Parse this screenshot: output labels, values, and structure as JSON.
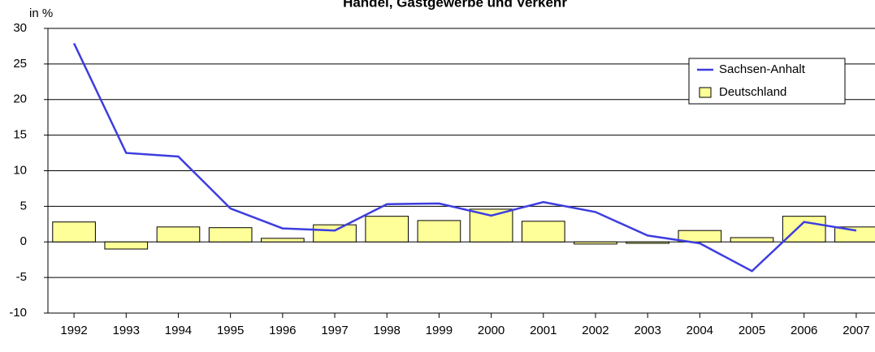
{
  "chart_data": {
    "type": "bar_line",
    "title": "Handel, Gastgewerbe und Verkehr",
    "y_label": "in %",
    "categories": [
      "1992",
      "1993",
      "1994",
      "1995",
      "1996",
      "1997",
      "1998",
      "1999",
      "2000",
      "2001",
      "2002",
      "2003",
      "2004",
      "2005",
      "2006",
      "2007"
    ],
    "series": [
      {
        "name": "Sachsen-Anhalt",
        "type": "line",
        "color": "#3d3de0",
        "values": [
          27.9,
          12.5,
          12.0,
          4.7,
          1.9,
          1.6,
          5.3,
          5.4,
          3.7,
          5.6,
          4.2,
          0.9,
          -0.2,
          -4.1,
          2.8,
          1.6
        ]
      },
      {
        "name": "Deutschland",
        "type": "bar",
        "color": "#ffff99",
        "values": [
          2.8,
          -1.0,
          2.1,
          2.0,
          0.5,
          2.4,
          3.6,
          3.0,
          4.6,
          2.9,
          -0.3,
          -0.2,
          1.6,
          0.6,
          3.6,
          2.1
        ]
      }
    ],
    "ylim": [
      -10,
      30
    ],
    "yticks": [
      -10,
      -5,
      0,
      5,
      10,
      15,
      20,
      25,
      30
    ],
    "grid": true
  }
}
